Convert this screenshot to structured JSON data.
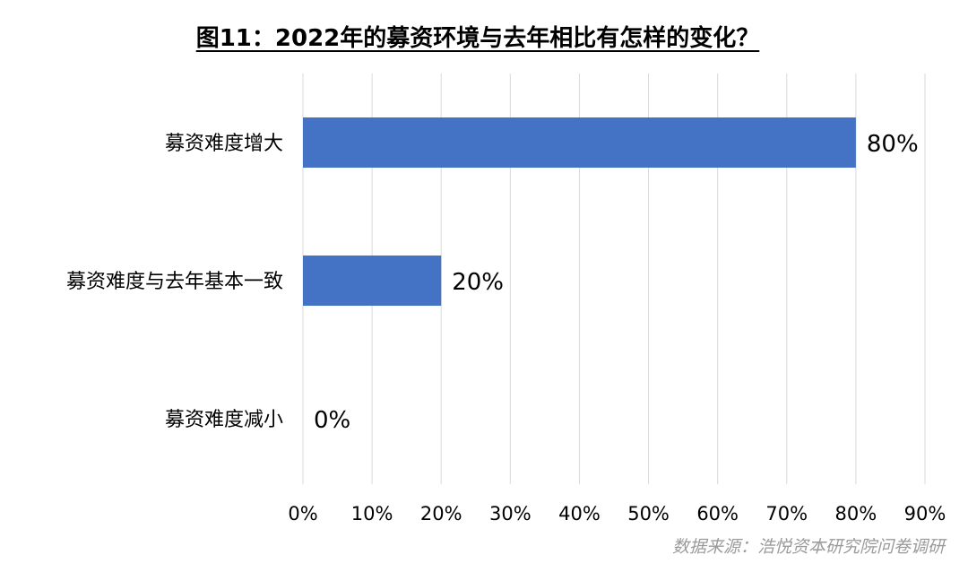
{
  "chart_data": {
    "type": "bar",
    "orientation": "horizontal",
    "title": "图11：2022年的募资环境与去年相比有怎样的变化？",
    "categories": [
      "募资难度增大",
      "募资难度与去年基本一致",
      "募资难度减小"
    ],
    "values": [
      80,
      20,
      0
    ],
    "value_labels": [
      "80%",
      "20%",
      "0%"
    ],
    "x_ticks": [
      "0%",
      "10%",
      "20%",
      "30%",
      "40%",
      "50%",
      "60%",
      "70%",
      "80%",
      "90%"
    ],
    "xlim": [
      0,
      90
    ],
    "grid": "vertical",
    "bar_color": "#4472C4",
    "grid_color": "#D9D9D9",
    "source": "数据来源：浩悦资本研究院问卷调研"
  }
}
